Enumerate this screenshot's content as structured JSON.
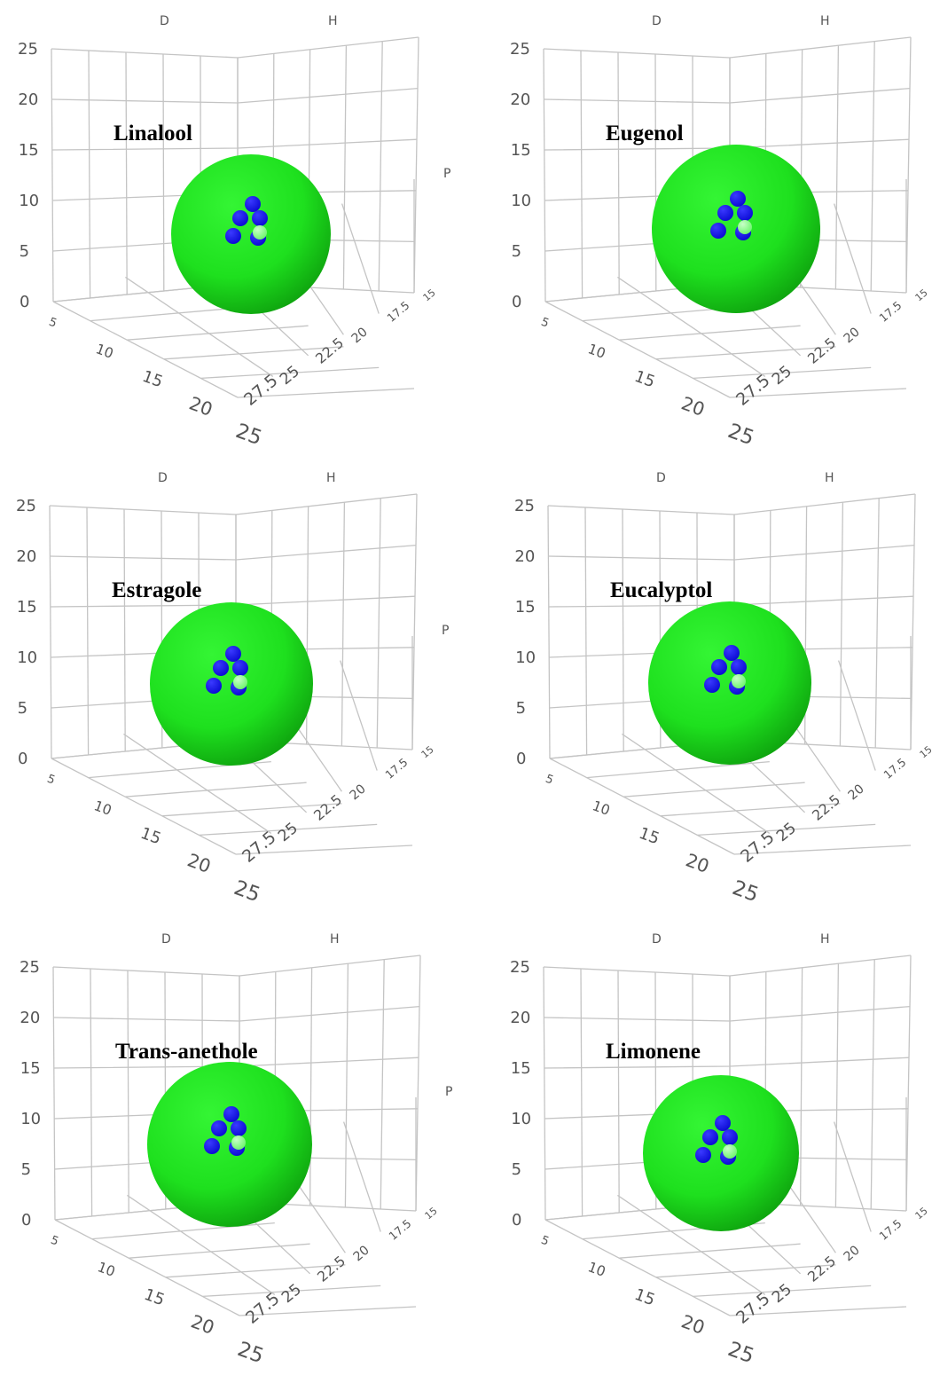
{
  "figure": {
    "panels": [
      {
        "title": "Linalool"
      },
      {
        "title": "Eugenol"
      },
      {
        "title": "Estragole"
      },
      {
        "title": "Eucalyptol"
      },
      {
        "title": "Trans-anethole"
      },
      {
        "title": "Limonene"
      }
    ]
  },
  "chart_data": [
    {
      "type": "scatter",
      "title": "Linalool",
      "axes": {
        "x": "D",
        "y": "H",
        "z": "P"
      },
      "z_ticks": [
        "0",
        "5",
        "10",
        "15",
        "20",
        "25"
      ],
      "d_ticks": [
        "5",
        "10",
        "15",
        "20",
        "25"
      ],
      "h_ticks": [
        "27.5",
        "25",
        "22.5",
        "20",
        "17.5",
        "15"
      ],
      "grid": true,
      "colors": {
        "sphere": "#1ee01e",
        "points": "#0a0ad2",
        "center": "#6cf56c"
      },
      "series": [
        {
          "marker": "sphere",
          "points": [
            [
              17,
              20,
              5
            ],
            [
              17.5,
              19.5,
              7
            ],
            [
              17,
              20.5,
              8
            ]
          ]
        },
        {
          "marker": "small-sphere",
          "points": [
            [
              16.5,
              20,
              5.5
            ],
            [
              18,
              20,
              6
            ]
          ]
        }
      ]
    },
    {
      "type": "scatter",
      "title": "Eugenol",
      "axes": {
        "x": "D",
        "y": "H",
        "z": "P"
      },
      "z_ticks": [
        "0",
        "5",
        "10",
        "15",
        "20",
        "25"
      ],
      "d_ticks": [
        "5",
        "10",
        "15",
        "20",
        "25"
      ],
      "h_ticks": [
        "27.5",
        "25",
        "22.5",
        "20",
        "17.5",
        "15"
      ],
      "grid": true,
      "colors": {
        "sphere": "#1ee01e",
        "points": "#0a0ad2",
        "center": "#6cf56c"
      },
      "series": [
        {
          "marker": "sphere",
          "points": [
            [
              17.5,
              20,
              6.5
            ],
            [
              18,
              21,
              8
            ]
          ]
        },
        {
          "marker": "small-sphere",
          "points": [
            [
              17,
              19.5,
              5.5
            ],
            [
              18.5,
              20.5,
              6
            ],
            [
              17.5,
              20.5,
              7
            ]
          ]
        }
      ]
    },
    {
      "type": "scatter",
      "title": "Estragole",
      "axes": {
        "x": "D",
        "y": "H",
        "z": "P"
      },
      "z_ticks": [
        "0",
        "5",
        "10",
        "15",
        "20",
        "25"
      ],
      "d_ticks": [
        "5",
        "10",
        "15",
        "20",
        "25"
      ],
      "h_ticks": [
        "27.5",
        "25",
        "22.5",
        "20",
        "17.5",
        "15"
      ],
      "grid": true,
      "colors": {
        "sphere": "#1ee01e",
        "points": "#0a0ad2",
        "center": "#6cf56c"
      },
      "series": [
        {
          "marker": "sphere",
          "points": [
            [
              18,
              21,
              6.5
            ],
            [
              17.5,
              20.5,
              7
            ],
            [
              18,
              21,
              8
            ]
          ]
        },
        {
          "marker": "small-sphere",
          "points": [
            [
              17,
              20,
              5.5
            ],
            [
              18.5,
              20.5,
              6
            ]
          ]
        }
      ]
    },
    {
      "type": "scatter",
      "title": "Eucalyptol",
      "axes": {
        "x": "D",
        "y": "H",
        "z": "P"
      },
      "z_ticks": [
        "0",
        "5",
        "10",
        "15",
        "20",
        "25"
      ],
      "d_ticks": [
        "5",
        "10",
        "15",
        "20",
        "25"
      ],
      "h_ticks": [
        "27.5",
        "25",
        "22.5",
        "20",
        "17.5",
        "15"
      ],
      "grid": true,
      "colors": {
        "sphere": "#1ee01e",
        "points": "#0a0ad2",
        "center": "#6cf56c"
      },
      "series": [
        {
          "marker": "sphere",
          "points": [
            [
              17,
              19.5,
              5
            ],
            [
              17.5,
              20.5,
              6
            ]
          ]
        },
        {
          "marker": "small-sphere",
          "points": [
            [
              17,
              20,
              5.5
            ],
            [
              18.5,
              20.5,
              6
            ],
            [
              18,
              21,
              8
            ]
          ]
        }
      ]
    },
    {
      "type": "scatter",
      "title": "Trans-anethole",
      "axes": {
        "x": "D",
        "y": "H",
        "z": "P"
      },
      "z_ticks": [
        "0",
        "5",
        "10",
        "15",
        "20",
        "25"
      ],
      "d_ticks": [
        "5",
        "10",
        "15",
        "20",
        "25"
      ],
      "h_ticks": [
        "27.5",
        "25",
        "22.5",
        "20",
        "17.5",
        "15"
      ],
      "grid": true,
      "colors": {
        "sphere": "#1ee01e",
        "points": "#0a0ad2",
        "center": "#6cf56c"
      },
      "series": [
        {
          "marker": "sphere",
          "points": [
            [
              18.5,
              21.5,
              4
            ],
            [
              17,
              20.5,
              5.5
            ]
          ]
        },
        {
          "marker": "small-sphere",
          "points": [
            [
              17,
              20,
              5.5
            ],
            [
              18.5,
              20.5,
              6
            ],
            [
              18,
              21,
              8
            ]
          ]
        }
      ]
    },
    {
      "type": "scatter",
      "title": "Limonene",
      "axes": {
        "x": "D",
        "y": "H",
        "z": "P"
      },
      "z_ticks": [
        "0",
        "5",
        "10",
        "15",
        "20",
        "25"
      ],
      "d_ticks": [
        "5",
        "10",
        "15",
        "20",
        "25"
      ],
      "h_ticks": [
        "27.5",
        "25",
        "22.5",
        "20",
        "17.5",
        "15"
      ],
      "grid": true,
      "colors": {
        "sphere": "#1ee01e",
        "points": "#0a0ad2",
        "center": "#6cf56c"
      },
      "series": [
        {
          "marker": "sphere",
          "points": [
            [
              17.5,
              20,
              2
            ],
            [
              17.5,
              20,
              4
            ]
          ]
        },
        {
          "marker": "small-sphere",
          "points": [
            [
              17,
              20,
              5.5
            ],
            [
              18.5,
              20.5,
              6
            ],
            [
              18,
              21,
              8
            ]
          ]
        }
      ]
    }
  ]
}
